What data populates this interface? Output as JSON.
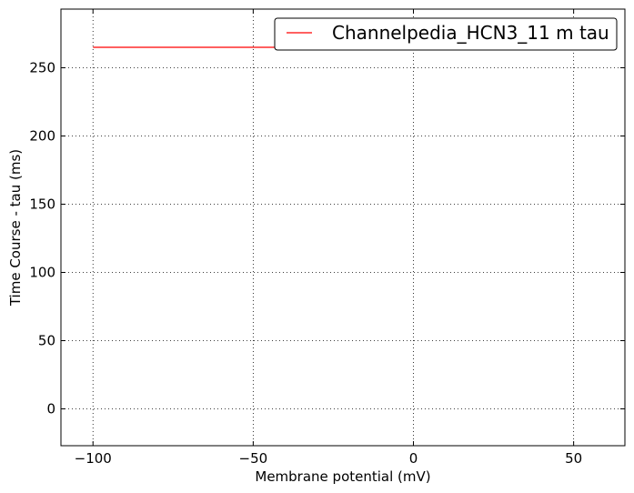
{
  "chart_data": {
    "type": "line",
    "title": "",
    "xlabel": "Membrane potential (mV)",
    "ylabel": "Time Course - tau (ms)",
    "xlim": [
      -110,
      66
    ],
    "ylim": [
      -27,
      293
    ],
    "xticks": [
      -100,
      -50,
      0,
      50
    ],
    "xtick_labels": [
      "−100",
      "−50",
      "0",
      "50"
    ],
    "yticks": [
      0,
      50,
      100,
      150,
      200,
      250
    ],
    "ytick_labels": [
      "0",
      "50",
      "100",
      "150",
      "200",
      "250"
    ],
    "grid": true,
    "legend_position": "top-right",
    "series": [
      {
        "name": "Channelpedia_HCN3_11 m tau",
        "color": "#ff0000",
        "x": [
          -100,
          60
        ],
        "y": [
          265,
          265
        ]
      }
    ]
  }
}
